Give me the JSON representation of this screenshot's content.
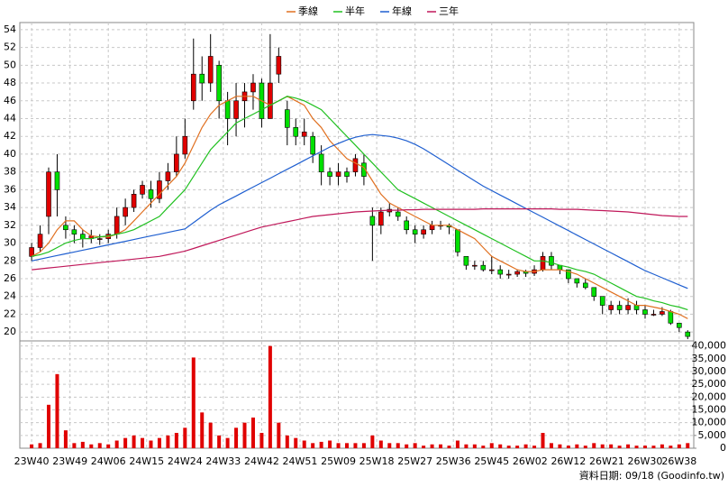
{
  "chart_data": {
    "type": "candlestick",
    "source": "資料日期: 09/18 (Goodinfo.tw)",
    "grid": true,
    "up_color": "#e00000",
    "down_color": "#00e000",
    "x": [
      0,
      2,
      4,
      6,
      8,
      10,
      12,
      14,
      16,
      18,
      20,
      22,
      24,
      26,
      28,
      30,
      32,
      34,
      36,
      38,
      40,
      42,
      44,
      46,
      48,
      50,
      52,
      54,
      56,
      58,
      60,
      62,
      64,
      66,
      68,
      70,
      72,
      74,
      76,
      78,
      80,
      82,
      84,
      86,
      88,
      90,
      92,
      94,
      96,
      98,
      100,
      102,
      104,
      106,
      108,
      110,
      112,
      114,
      116,
      118,
      120,
      122,
      124,
      126,
      128,
      130,
      132,
      134,
      136,
      138,
      140,
      142,
      144,
      146,
      148,
      150,
      152,
      154
    ],
    "xlim": [
      -1.5,
      155
    ],
    "xticks": [
      {
        "value": 0,
        "label": "23W40"
      },
      {
        "value": 9,
        "label": "23W49"
      },
      {
        "value": 18,
        "label": "24W06"
      },
      {
        "value": 27,
        "label": "24W15"
      },
      {
        "value": 36,
        "label": "24W24"
      },
      {
        "value": 45,
        "label": "24W33"
      },
      {
        "value": 54,
        "label": "24W42"
      },
      {
        "value": 63,
        "label": "24W51"
      },
      {
        "value": 72,
        "label": "25W09"
      },
      {
        "value": 81,
        "label": "25W18"
      },
      {
        "value": 90,
        "label": "25W27"
      },
      {
        "value": 99,
        "label": "25W36"
      },
      {
        "value": 108,
        "label": "25W45"
      },
      {
        "value": 117,
        "label": "26W02"
      },
      {
        "value": 126,
        "label": "26W12"
      },
      {
        "value": 135,
        "label": "26W21"
      },
      {
        "value": 144,
        "label": "26W30"
      },
      {
        "value": 152,
        "label": "26W38"
      }
    ],
    "ylim": [
      19,
      54.8
    ],
    "yticks": [
      20,
      22,
      24,
      26,
      28,
      30,
      32,
      34,
      36,
      38,
      40,
      42,
      44,
      46,
      48,
      50,
      52,
      54
    ],
    "open": [
      28.5,
      29.5,
      33,
      38,
      32,
      31.5,
      31,
      30.5,
      30.5,
      30.5,
      31,
      33,
      34,
      35.5,
      36,
      35,
      37,
      38,
      40,
      46,
      49,
      48,
      50,
      46,
      44,
      46,
      47,
      48,
      44,
      49,
      45,
      43,
      42,
      42,
      40,
      38,
      37.5,
      38,
      38,
      39,
      33,
      32,
      33.5,
      33.5,
      32.5,
      31.5,
      31,
      31.5,
      32,
      32,
      31.5,
      28.5,
      27.5,
      27.5,
      27,
      27,
      26.5,
      26.5,
      26.8,
      26.6,
      27,
      28.5,
      27.5,
      27,
      26,
      25.5,
      25,
      24,
      22.5,
      23,
      22.5,
      23,
      22.5,
      22,
      22,
      22.3,
      21,
      20
    ],
    "high": [
      30,
      32,
      38.5,
      40,
      33,
      32,
      31.5,
      31.5,
      31,
      31.5,
      34,
      35,
      36,
      37,
      37,
      38,
      39,
      42,
      44,
      53,
      51,
      53.5,
      50.5,
      47,
      48,
      48,
      49,
      48.5,
      53.5,
      52,
      46,
      44,
      44,
      42.5,
      41,
      38.5,
      39,
      38.5,
      40,
      40,
      34,
      34,
      34.5,
      34,
      33,
      32,
      32,
      32.5,
      32.5,
      32.2,
      31.5,
      28.5,
      28,
      28,
      28.5,
      27.5,
      27,
      27,
      27,
      27.5,
      29,
      29,
      27.5,
      27,
      26,
      26,
      25,
      24,
      23.5,
      23.5,
      23.8,
      23.5,
      23,
      22.5,
      22.8,
      22.5,
      21,
      20.2
    ],
    "low": [
      28,
      29,
      31,
      33,
      30.5,
      30,
      29.5,
      30,
      29.8,
      30,
      30.5,
      32,
      33.5,
      35,
      34,
      34.5,
      36,
      37.5,
      39.5,
      45,
      46,
      47,
      44,
      41,
      42,
      43,
      45,
      43,
      44,
      48,
      41,
      41,
      41,
      39,
      36.5,
      36.5,
      36.5,
      36.8,
      37.5,
      36.5,
      28,
      31,
      33,
      32.5,
      31,
      30,
      30.5,
      31,
      31.5,
      31,
      28.5,
      27,
      27,
      26.8,
      26.5,
      26,
      26,
      26.2,
      26.2,
      26.3,
      26.8,
      27,
      26.5,
      25.5,
      25,
      24.8,
      23.5,
      22,
      22,
      22,
      22,
      22,
      21.5,
      21.8,
      21.8,
      20.8,
      20,
      19.2
    ],
    "close": [
      29.5,
      31,
      38,
      36,
      31.5,
      31,
      30.5,
      30.8,
      30.5,
      31,
      33,
      34,
      35.5,
      36.5,
      35,
      37,
      38,
      40,
      42,
      49,
      48,
      51,
      46,
      44,
      46,
      47,
      48,
      44,
      48,
      51,
      43,
      42,
      42.5,
      40,
      38,
      37.5,
      38,
      37.5,
      39.5,
      37.5,
      32,
      33.5,
      33.8,
      33,
      31.5,
      31,
      31.5,
      32,
      32,
      31.8,
      29,
      27.5,
      27.5,
      27,
      27,
      26.5,
      26.5,
      26.8,
      26.6,
      27,
      28.5,
      27.5,
      27,
      26,
      25.5,
      25,
      24,
      23,
      23,
      22.5,
      23,
      22.5,
      22,
      22,
      22.3,
      21,
      20.5,
      19.5
    ],
    "series": [
      {
        "name": "季線",
        "color": "#e07020",
        "values": [
          28.5,
          29,
          30,
          31.5,
          32.5,
          32.5,
          31.5,
          30.8,
          30.7,
          30.7,
          31,
          31.5,
          32.5,
          33.5,
          34.5,
          35.5,
          36.5,
          37.5,
          39,
          41,
          43,
          44.5,
          45.5,
          46,
          46.5,
          46.5,
          46.5,
          46,
          45.5,
          46,
          46.5,
          46,
          45.5,
          44,
          43,
          41.5,
          40.5,
          39.5,
          39,
          38.5,
          37,
          35.5,
          34.5,
          34,
          33.5,
          33,
          32.5,
          32,
          32,
          32,
          31.5,
          31,
          30.5,
          29.5,
          28.5,
          28,
          27.5,
          27,
          26.8,
          26.8,
          27,
          27,
          27,
          26.8,
          26.5,
          26,
          25.5,
          25,
          24.5,
          24,
          23.5,
          23,
          23,
          22.8,
          22.6,
          22.3,
          22,
          21.5
        ]
      },
      {
        "name": "半年",
        "color": "#20c020",
        "values": [
          28.5,
          28.7,
          29,
          29.5,
          30,
          30.3,
          30.5,
          30.5,
          30.7,
          30.8,
          31,
          31.2,
          31.5,
          32,
          32.5,
          33,
          34,
          35,
          36,
          37.5,
          39,
          40.5,
          41.5,
          42.5,
          43.5,
          44,
          44.5,
          45,
          45.5,
          46,
          46.5,
          46.3,
          46,
          45.5,
          45,
          44,
          43,
          42,
          41,
          40,
          39,
          38,
          37,
          36,
          35.5,
          35,
          34.5,
          34,
          33.5,
          33,
          32.5,
          32,
          31.5,
          31,
          30.5,
          30,
          29.5,
          29,
          28.5,
          28,
          28,
          27.8,
          27.5,
          27.3,
          27,
          26.8,
          26.5,
          26,
          25.5,
          25,
          24.5,
          24,
          23.8,
          23.5,
          23.3,
          23,
          22.8,
          22.5
        ]
      },
      {
        "name": "年線",
        "color": "#1f5fd0",
        "values": [
          28,
          28.2,
          28.4,
          28.6,
          28.8,
          29,
          29.2,
          29.4,
          29.6,
          29.8,
          30,
          30.2,
          30.4,
          30.6,
          30.8,
          31,
          31.2,
          31.4,
          31.6,
          32.3,
          33,
          33.7,
          34.3,
          34.8,
          35.3,
          35.8,
          36.3,
          36.8,
          37.3,
          37.8,
          38.3,
          38.8,
          39.3,
          39.8,
          40.3,
          40.8,
          41.2,
          41.6,
          41.9,
          42.1,
          42.2,
          42.1,
          42,
          41.8,
          41.5,
          41.1,
          40.6,
          40,
          39.4,
          38.8,
          38.2,
          37.6,
          37,
          36.4,
          35.9,
          35.4,
          34.9,
          34.4,
          33.9,
          33.4,
          32.9,
          32.4,
          31.9,
          31.4,
          30.9,
          30.4,
          29.9,
          29.4,
          28.9,
          28.4,
          27.9,
          27.4,
          26.9,
          26.5,
          26.1,
          25.7,
          25.3,
          24.9
        ]
      },
      {
        "name": "三年",
        "color": "#c0185a",
        "values": [
          27,
          27.1,
          27.2,
          27.3,
          27.4,
          27.5,
          27.6,
          27.7,
          27.8,
          27.9,
          28,
          28.1,
          28.2,
          28.3,
          28.4,
          28.5,
          28.7,
          28.9,
          29.1,
          29.4,
          29.7,
          30,
          30.3,
          30.6,
          30.9,
          31.2,
          31.5,
          31.8,
          32,
          32.2,
          32.4,
          32.6,
          32.8,
          33,
          33.1,
          33.2,
          33.3,
          33.4,
          33.5,
          33.55,
          33.6,
          33.65,
          33.7,
          33.7,
          33.75,
          33.75,
          33.8,
          33.8,
          33.8,
          33.8,
          33.8,
          33.8,
          33.8,
          33.85,
          33.85,
          33.85,
          33.85,
          33.85,
          33.85,
          33.85,
          33.85,
          33.85,
          33.8,
          33.8,
          33.8,
          33.75,
          33.7,
          33.65,
          33.6,
          33.55,
          33.5,
          33.4,
          33.3,
          33.2,
          33.1,
          33.05,
          33,
          33
        ]
      }
    ],
    "volume": {
      "color": "#e00000",
      "ylim": [
        0,
        42000
      ],
      "yticks": [
        0,
        {
          "value": 5000,
          "label": "5,000"
        },
        {
          "value": 10000,
          "label": "10,000"
        },
        {
          "value": 15000,
          "label": "15,000"
        },
        {
          "value": 20000,
          "label": "20,000"
        },
        {
          "value": 25000,
          "label": "25,000"
        },
        {
          "value": 30000,
          "label": "30,000"
        },
        {
          "value": 35000,
          "label": "35,000"
        },
        {
          "value": 40000,
          "label": "40,000"
        }
      ],
      "values": [
        1500,
        2000,
        17000,
        29000,
        7000,
        2000,
        2500,
        1500,
        2000,
        1500,
        3000,
        4000,
        5000,
        4000,
        3000,
        4000,
        5000,
        6000,
        8000,
        35500,
        14000,
        10000,
        5000,
        4000,
        8000,
        10000,
        12000,
        6000,
        40000,
        10000,
        5000,
        4000,
        3000,
        2000,
        2500,
        3000,
        2000,
        2000,
        2000,
        2000,
        5000,
        3000,
        2000,
        2000,
        1500,
        2000,
        1000,
        1500,
        1500,
        1000,
        3000,
        1500,
        1500,
        1000,
        2000,
        1500,
        1000,
        1000,
        1500,
        1000,
        6000,
        2000,
        1500,
        1000,
        1500,
        1000,
        2000,
        1500,
        1500,
        1000,
        1500,
        1000,
        1000,
        1000,
        1500,
        1000,
        1500,
        2000
      ]
    }
  }
}
